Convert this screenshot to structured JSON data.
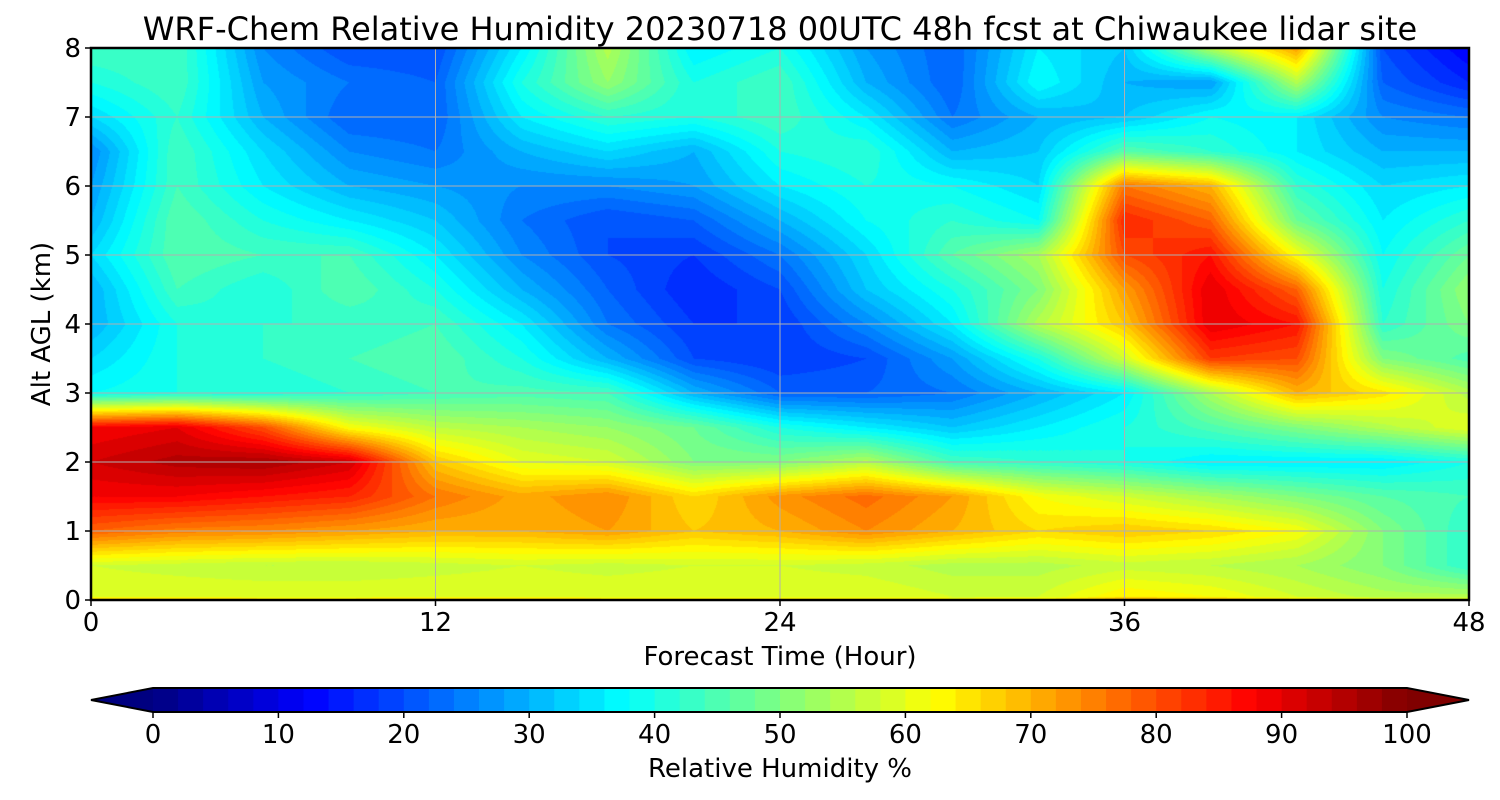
{
  "chart_data": {
    "type": "heatmap",
    "title": "WRF-Chem Relative Humidity 20230718 00UTC 48h fcst at Chiwaukee lidar site",
    "xlabel": "Forecast Time (Hour)",
    "ylabel": "Alt AGL (km)",
    "xlim": [
      0,
      48
    ],
    "ylim": [
      0,
      8
    ],
    "x_ticks": [
      "0",
      "12",
      "24",
      "36",
      "48"
    ],
    "y_ticks": [
      "0",
      "1",
      "2",
      "3",
      "4",
      "5",
      "6",
      "7",
      "8"
    ],
    "grid": true,
    "colormap": "jet",
    "colorbar": {
      "label": "Relative Humidity %",
      "range": [
        0,
        100
      ],
      "extend": "both",
      "ticks": [
        "0",
        "10",
        "20",
        "30",
        "40",
        "50",
        "60",
        "70",
        "80",
        "90",
        "100"
      ]
    },
    "x": [
      0,
      3,
      6,
      9,
      12,
      15,
      18,
      21,
      24,
      27,
      30,
      33,
      36,
      39,
      42,
      45,
      48
    ],
    "y": [
      0,
      0.05,
      0.5,
      1,
      1.5,
      2,
      2.5,
      3,
      3.5,
      4,
      4.5,
      5,
      5.5,
      6,
      6.5,
      7,
      7.5,
      8
    ],
    "z": [
      [
        68,
        68,
        67,
        67,
        68,
        68,
        67,
        67,
        67,
        66,
        65,
        66,
        74,
        72,
        68,
        64,
        62
      ],
      [
        60,
        60,
        60,
        60,
        60,
        60,
        60,
        60,
        60,
        60,
        58,
        58,
        64,
        62,
        58,
        55,
        55
      ],
      [
        58,
        57,
        56,
        56,
        57,
        58,
        57,
        58,
        58,
        57,
        55,
        55,
        57,
        56,
        54,
        50,
        42
      ],
      [
        78,
        75,
        74,
        72,
        70,
        70,
        72,
        68,
        70,
        74,
        70,
        66,
        68,
        66,
        62,
        50,
        42
      ],
      [
        88,
        88,
        86,
        84,
        76,
        71,
        74,
        66,
        73,
        77,
        72,
        62,
        58,
        54,
        50,
        46,
        44
      ],
      [
        92,
        95,
        96,
        92,
        68,
        60,
        58,
        50,
        50,
        55,
        44,
        42,
        40,
        36,
        36,
        36,
        40
      ],
      [
        88,
        90,
        80,
        62,
        56,
        54,
        52,
        48,
        40,
        36,
        32,
        36,
        40,
        45,
        50,
        55,
        60
      ],
      [
        38,
        40,
        40,
        42,
        44,
        45,
        44,
        30,
        22,
        22,
        24,
        30,
        36,
        54,
        70,
        65,
        55
      ],
      [
        34,
        40,
        42,
        44,
        46,
        40,
        30,
        20,
        18,
        20,
        28,
        40,
        58,
        82,
        80,
        50,
        45
      ],
      [
        30,
        40,
        42,
        42,
        44,
        36,
        24,
        18,
        18,
        26,
        36,
        55,
        68,
        90,
        86,
        42,
        50
      ],
      [
        30,
        44,
        40,
        46,
        40,
        30,
        22,
        16,
        20,
        32,
        40,
        50,
        72,
        90,
        78,
        40,
        52
      ],
      [
        34,
        46,
        44,
        44,
        36,
        26,
        20,
        18,
        24,
        34,
        46,
        54,
        80,
        86,
        62,
        38,
        48
      ],
      [
        30,
        46,
        40,
        36,
        32,
        24,
        20,
        22,
        30,
        38,
        42,
        38,
        84,
        78,
        48,
        36,
        42
      ],
      [
        28,
        44,
        36,
        30,
        28,
        26,
        26,
        28,
        36,
        40,
        38,
        34,
        76,
        70,
        42,
        34,
        36
      ],
      [
        26,
        44,
        34,
        26,
        24,
        30,
        34,
        30,
        40,
        42,
        30,
        32,
        46,
        42,
        36,
        30,
        30
      ],
      [
        34,
        42,
        30,
        22,
        22,
        36,
        42,
        40,
        44,
        36,
        24,
        30,
        32,
        38,
        36,
        26,
        24
      ],
      [
        40,
        44,
        28,
        24,
        22,
        40,
        52,
        40,
        44,
        30,
        22,
        38,
        30,
        28,
        55,
        22,
        16
      ],
      [
        44,
        44,
        26,
        20,
        20,
        36,
        55,
        36,
        40,
        28,
        22,
        36,
        32,
        55,
        72,
        20,
        12
      ]
    ]
  }
}
